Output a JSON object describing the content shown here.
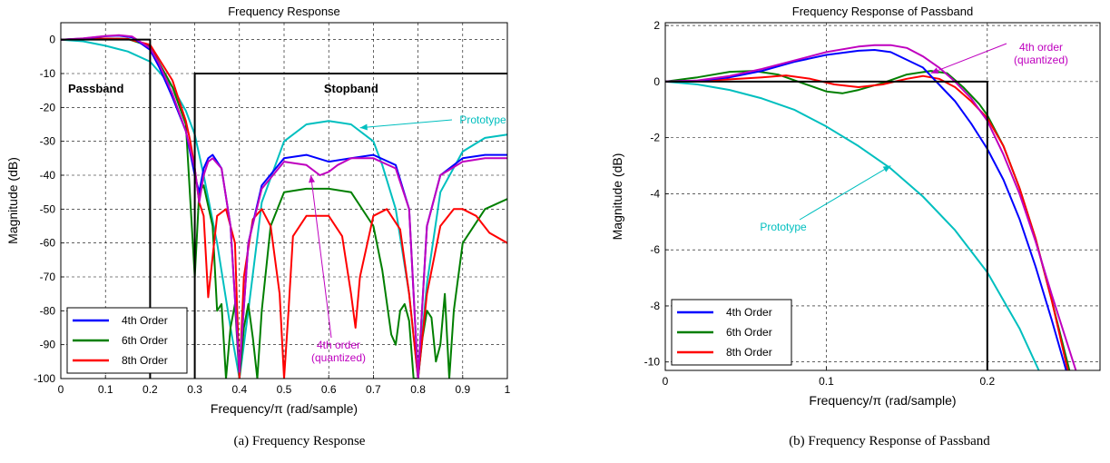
{
  "captions": [
    "(a) Frequency Response",
    "(b) Frequency Response of Passband"
  ],
  "chart_data": [
    {
      "type": "line",
      "title": "Frequency Response",
      "xlabel": "Frequency/π (rad/sample)",
      "ylabel": "Magnitude (dB)",
      "xlim": [
        0,
        1
      ],
      "ylim": [
        -100,
        5
      ],
      "xticks": [
        0,
        0.1,
        0.2,
        0.3,
        0.4,
        0.5,
        0.6,
        0.7,
        0.8,
        0.9,
        1
      ],
      "xtick_labels": [
        "0",
        "0.1",
        "0.2",
        "0.3",
        "0.4",
        "0.5",
        "0.6",
        "0.7",
        "0.8",
        "0.9",
        "1"
      ],
      "yticks": [
        0,
        -10,
        -20,
        -30,
        -40,
        -50,
        -60,
        -70,
        -80,
        -90,
        -100
      ],
      "ytick_labels": [
        "0",
        "-10",
        "-20",
        "-30",
        "-40",
        "-50",
        "-60",
        "-70",
        "-80",
        "-90",
        "-100"
      ],
      "grid": true,
      "legend": {
        "position": "bottom-left",
        "entries": [
          "4th Order",
          "6th Order",
          "8th Order"
        ]
      },
      "colors": {
        "4th Order": "#0000ff",
        "6th Order": "#007f00",
        "8th Order": "#ff0000",
        "Prototype": "#00bfbf",
        "4th order (quantized)": "#bf00bf",
        "mask": "#000000"
      },
      "mask": {
        "passband": {
          "x": [
            0,
            0.2
          ],
          "y": [
            0,
            0
          ],
          "label": "Passband"
        },
        "stopband": {
          "x": [
            0.3,
            1
          ],
          "top": -10,
          "label": "Stopband"
        }
      },
      "series": [
        {
          "name": "Prototype",
          "x": [
            0,
            0.05,
            0.1,
            0.15,
            0.2,
            0.25,
            0.28,
            0.3,
            0.32,
            0.35,
            0.38,
            0.4,
            0.42,
            0.45,
            0.5,
            0.55,
            0.6,
            0.65,
            0.7,
            0.72,
            0.75,
            0.78,
            0.8,
            0.82,
            0.85,
            0.9,
            0.95,
            1
          ],
          "y": [
            0,
            -0.5,
            -1.8,
            -3.5,
            -6.5,
            -14,
            -21,
            -28,
            -40,
            -60,
            -85,
            -100,
            -80,
            -48,
            -30,
            -25,
            -24,
            -25,
            -30,
            -37,
            -50,
            -75,
            -100,
            -72,
            -45,
            -33,
            -29,
            -28
          ]
        },
        {
          "name": "4th Order",
          "x": [
            0,
            0.05,
            0.1,
            0.13,
            0.16,
            0.2,
            0.22,
            0.25,
            0.28,
            0.3,
            0.31,
            0.32,
            0.33,
            0.34,
            0.36,
            0.38,
            0.4,
            0.42,
            0.45,
            0.5,
            0.55,
            0.6,
            0.65,
            0.7,
            0.75,
            0.78,
            0.8,
            0.82,
            0.85,
            0.9,
            0.95,
            1
          ],
          "y": [
            0,
            0.3,
            1.0,
            1.2,
            0.7,
            -3,
            -8,
            -17,
            -27,
            -40,
            -45,
            -38,
            -35,
            -34,
            -38,
            -55,
            -98,
            -60,
            -43,
            -35,
            -34,
            -36,
            -35,
            -34,
            -37,
            -50,
            -100,
            -55,
            -40,
            -35,
            -34,
            -34
          ]
        },
        {
          "name": "4th order (quantized)",
          "x": [
            0,
            0.05,
            0.1,
            0.13,
            0.16,
            0.2,
            0.22,
            0.25,
            0.28,
            0.3,
            0.31,
            0.32,
            0.33,
            0.34,
            0.36,
            0.38,
            0.4,
            0.42,
            0.45,
            0.5,
            0.55,
            0.58,
            0.6,
            0.62,
            0.65,
            0.7,
            0.75,
            0.78,
            0.8,
            0.82,
            0.85,
            0.9,
            0.95,
            1
          ],
          "y": [
            0,
            0.4,
            1.1,
            1.3,
            0.9,
            -2.5,
            -7,
            -16,
            -27,
            -38,
            -48,
            -40,
            -36,
            -35,
            -38,
            -55,
            -98,
            -60,
            -44,
            -36,
            -37,
            -40,
            -39,
            -37,
            -35,
            -35,
            -38,
            -50,
            -100,
            -55,
            -40,
            -36,
            -35,
            -35
          ]
        },
        {
          "name": "6th Order",
          "x": [
            0,
            0.05,
            0.1,
            0.15,
            0.2,
            0.25,
            0.28,
            0.3,
            0.31,
            0.32,
            0.34,
            0.35,
            0.36,
            0.37,
            0.38,
            0.39,
            0.4,
            0.41,
            0.42,
            0.43,
            0.44,
            0.45,
            0.47,
            0.5,
            0.55,
            0.6,
            0.65,
            0.7,
            0.72,
            0.74,
            0.75,
            0.76,
            0.77,
            0.78,
            0.79,
            0.8,
            0.81,
            0.82,
            0.83,
            0.84,
            0.85,
            0.86,
            0.87,
            0.88,
            0.9,
            0.95,
            1
          ],
          "y": [
            0,
            0.2,
            0.3,
            0.2,
            -2,
            -14,
            -25,
            -70,
            -45,
            -43,
            -55,
            -80,
            -78,
            -100,
            -85,
            -78,
            -100,
            -85,
            -78,
            -88,
            -100,
            -80,
            -55,
            -45,
            -44,
            -44,
            -45,
            -55,
            -68,
            -87,
            -90,
            -80,
            -78,
            -83,
            -100,
            -100,
            -88,
            -80,
            -82,
            -95,
            -90,
            -75,
            -100,
            -80,
            -60,
            -50,
            -47
          ]
        },
        {
          "name": "8th Order",
          "x": [
            0,
            0.05,
            0.1,
            0.15,
            0.2,
            0.25,
            0.28,
            0.29,
            0.3,
            0.31,
            0.32,
            0.33,
            0.35,
            0.37,
            0.39,
            0.4,
            0.41,
            0.43,
            0.45,
            0.47,
            0.49,
            0.5,
            0.51,
            0.52,
            0.55,
            0.6,
            0.63,
            0.65,
            0.66,
            0.67,
            0.7,
            0.73,
            0.76,
            0.78,
            0.8,
            0.82,
            0.85,
            0.88,
            0.9,
            0.93,
            0.96,
            1
          ],
          "y": [
            0,
            0.2,
            0.3,
            0.2,
            -1.5,
            -12,
            -24,
            -30,
            -38,
            -48,
            -52,
            -76,
            -52,
            -50,
            -60,
            -100,
            -70,
            -53,
            -50,
            -55,
            -75,
            -100,
            -80,
            -58,
            -52,
            -52,
            -58,
            -75,
            -85,
            -70,
            -52,
            -50,
            -56,
            -75,
            -100,
            -75,
            -55,
            -50,
            -50,
            -52,
            -57,
            -60
          ]
        }
      ],
      "annotations": [
        {
          "text": "Prototype",
          "color": "#00bfbf",
          "target": [
            0.67,
            -26
          ]
        },
        {
          "text": "4th order\n(quantized)",
          "color": "#bf00bf",
          "target": [
            0.56,
            -40
          ]
        }
      ]
    },
    {
      "type": "line",
      "title": "Frequency Response of Passband",
      "xlabel": "Frequency/π (rad/sample)",
      "ylabel": "Magnitude (dB)",
      "xlim": [
        0,
        0.27
      ],
      "ylim": [
        -10.3,
        2.1
      ],
      "xticks": [
        0,
        0.1,
        0.2
      ],
      "xtick_labels": [
        "0",
        "0.1",
        "0.2"
      ],
      "yticks": [
        2,
        0,
        -2,
        -4,
        -6,
        -8,
        -10
      ],
      "ytick_labels": [
        "2",
        "0",
        "-2",
        "-4",
        "-6",
        "-8",
        "-10"
      ],
      "grid": true,
      "legend": {
        "position": "bottom-left",
        "entries": [
          "4th Order",
          "6th Order",
          "8th Order"
        ]
      },
      "colors": {
        "4th Order": "#0000ff",
        "6th Order": "#007f00",
        "8th Order": "#ff0000",
        "Prototype": "#00bfbf",
        "4th order (quantized)": "#bf00bf",
        "mask": "#000000"
      },
      "mask": {
        "passband": {
          "x": [
            0,
            0.2
          ],
          "y": [
            0,
            0
          ]
        }
      },
      "series": [
        {
          "name": "Prototype",
          "x": [
            0,
            0.02,
            0.04,
            0.06,
            0.08,
            0.1,
            0.12,
            0.14,
            0.16,
            0.18,
            0.2,
            0.22,
            0.232
          ],
          "y": [
            0,
            -0.1,
            -0.3,
            -0.6,
            -1.0,
            -1.6,
            -2.3,
            -3.1,
            -4.1,
            -5.3,
            -6.8,
            -8.8,
            -10.3
          ]
        },
        {
          "name": "4th Order",
          "x": [
            0,
            0.02,
            0.04,
            0.06,
            0.08,
            0.1,
            0.12,
            0.13,
            0.14,
            0.16,
            0.17,
            0.18,
            0.19,
            0.2,
            0.21,
            0.22,
            0.23,
            0.24,
            0.249
          ],
          "y": [
            0,
            0.03,
            0.15,
            0.38,
            0.7,
            0.95,
            1.1,
            1.13,
            1.05,
            0.5,
            -0.1,
            -0.7,
            -1.5,
            -2.4,
            -3.5,
            -4.9,
            -6.6,
            -8.5,
            -10.3
          ]
        },
        {
          "name": "4th order (quantized)",
          "x": [
            0,
            0.02,
            0.04,
            0.06,
            0.08,
            0.1,
            0.12,
            0.13,
            0.14,
            0.15,
            0.16,
            0.17,
            0.18,
            0.19,
            0.2,
            0.21,
            0.22,
            0.23,
            0.24,
            0.255
          ],
          "y": [
            0,
            0.04,
            0.2,
            0.45,
            0.75,
            1.05,
            1.25,
            1.3,
            1.3,
            1.2,
            0.9,
            0.5,
            0.0,
            -0.6,
            -1.4,
            -2.6,
            -4.0,
            -5.7,
            -7.6,
            -10.3
          ]
        },
        {
          "name": "6th Order",
          "x": [
            0,
            0.02,
            0.04,
            0.055,
            0.07,
            0.085,
            0.1,
            0.11,
            0.12,
            0.135,
            0.15,
            0.165,
            0.175,
            0.185,
            0.195,
            0.2,
            0.21,
            0.22,
            0.23,
            0.24,
            0.251
          ],
          "y": [
            0,
            0.15,
            0.35,
            0.38,
            0.25,
            -0.05,
            -0.35,
            -0.42,
            -0.3,
            -0.05,
            0.25,
            0.38,
            0.3,
            -0.2,
            -0.8,
            -1.2,
            -2.3,
            -3.8,
            -5.6,
            -7.8,
            -10.3
          ]
        },
        {
          "name": "8th Order",
          "x": [
            0,
            0.02,
            0.04,
            0.06,
            0.075,
            0.09,
            0.105,
            0.12,
            0.135,
            0.15,
            0.16,
            0.17,
            0.18,
            0.19,
            0.2,
            0.21,
            0.22,
            0.23,
            0.24,
            0.25
          ],
          "y": [
            0,
            0.02,
            0.08,
            0.15,
            0.22,
            0.1,
            -0.1,
            -0.2,
            -0.1,
            0.1,
            0.2,
            0.1,
            -0.2,
            -0.7,
            -1.3,
            -2.3,
            -3.8,
            -5.6,
            -7.8,
            -10.3
          ]
        }
      ],
      "annotations": [
        {
          "text": "Prototype",
          "color": "#00bfbf",
          "target": [
            0.14,
            -3.0
          ]
        },
        {
          "text": "4th order\n(quantized)",
          "color": "#bf00bf",
          "target": [
            0.165,
            0.3
          ]
        }
      ]
    }
  ]
}
